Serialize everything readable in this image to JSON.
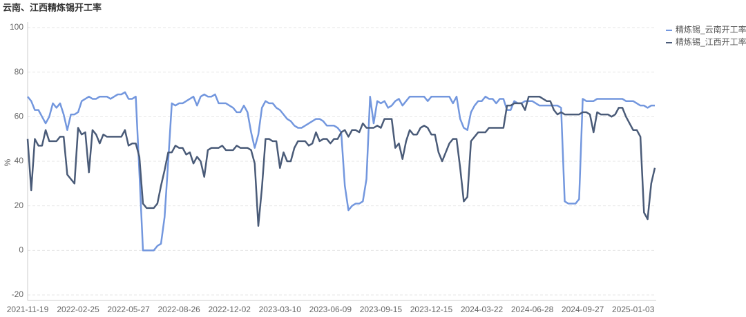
{
  "chart_data": {
    "type": "line",
    "title": "云南、江西精炼锡开工率",
    "y_label": "%",
    "categories": [
      "2021-11-19",
      null,
      null,
      null,
      null,
      null,
      null,
      null,
      null,
      null,
      null,
      null,
      null,
      null,
      "2022-02-25",
      null,
      null,
      null,
      null,
      null,
      null,
      null,
      null,
      null,
      null,
      null,
      null,
      null,
      "2022-05-27",
      null,
      null,
      null,
      null,
      null,
      null,
      null,
      null,
      null,
      null,
      null,
      null,
      null,
      "2022-08-26",
      null,
      null,
      null,
      null,
      null,
      null,
      null,
      null,
      null,
      null,
      null,
      null,
      null,
      "2022-12-02",
      null,
      null,
      null,
      null,
      null,
      null,
      null,
      null,
      null,
      null,
      null,
      null,
      null,
      "2023-03-10",
      null,
      null,
      null,
      null,
      null,
      null,
      null,
      null,
      null,
      null,
      null,
      null,
      null,
      "2023-06-09",
      null,
      null,
      null,
      null,
      null,
      null,
      null,
      null,
      null,
      null,
      null,
      null,
      null,
      "2023-09-15",
      null,
      null,
      null,
      null,
      null,
      null,
      null,
      null,
      null,
      null,
      null,
      null,
      null,
      "2023-12-15",
      null,
      null,
      null,
      null,
      null,
      null,
      null,
      null,
      null,
      null,
      null,
      null,
      null,
      "2024-03-22",
      null,
      null,
      null,
      null,
      null,
      null,
      null,
      null,
      null,
      null,
      null,
      null,
      null,
      "2024-06-28",
      null,
      null,
      null,
      null,
      null,
      null,
      null,
      null,
      null,
      null,
      null,
      null,
      null,
      "2024-09-27",
      null,
      null,
      null,
      null,
      null,
      null,
      null,
      null,
      null,
      null,
      null,
      null,
      null,
      "2025-01-03",
      null,
      null,
      null,
      null,
      null,
      null
    ],
    "series": [
      {
        "name": "精炼锡_云南开工率",
        "color": "#7397de",
        "values": [
          69,
          67,
          63,
          63,
          60,
          57,
          60,
          66,
          64,
          66,
          61,
          54,
          61,
          61,
          62,
          67,
          68,
          69,
          68,
          68,
          69,
          69,
          69,
          68,
          69,
          70,
          70,
          71,
          68,
          68,
          69,
          35,
          0,
          0,
          0,
          0,
          2,
          3,
          15,
          40,
          66,
          65,
          66,
          66,
          67,
          68,
          69,
          65,
          69,
          70,
          69,
          69,
          70,
          66,
          66,
          66,
          65,
          64,
          62,
          62,
          65,
          62,
          53,
          46,
          52,
          64,
          67,
          66,
          66,
          64,
          63,
          61,
          59,
          58,
          56,
          55,
          55,
          56,
          57,
          58,
          59,
          59,
          58,
          56,
          56,
          56,
          55,
          53,
          29,
          18,
          20,
          21,
          21,
          22,
          32,
          69,
          57,
          67,
          66,
          67,
          64,
          65,
          67,
          68,
          65,
          67,
          69,
          69,
          69,
          69,
          69,
          67,
          69,
          69,
          69,
          69,
          69,
          69,
          66,
          69,
          59,
          55,
          54,
          62,
          65,
          67,
          67,
          69,
          68,
          68,
          66,
          68,
          68,
          63,
          63,
          67,
          66,
          66,
          67,
          67,
          67,
          66,
          65,
          65,
          65,
          65,
          65,
          65,
          64,
          22,
          21,
          21,
          21,
          23,
          68,
          67,
          67,
          67,
          68,
          68,
          68,
          68,
          68,
          68,
          68,
          68,
          67,
          67,
          67,
          66,
          65,
          65,
          64,
          65,
          65
        ]
      },
      {
        "name": "精炼锡_江西开工率",
        "color": "#4a5b78",
        "values": [
          50,
          27,
          50,
          47,
          47,
          54,
          49,
          49,
          49,
          51,
          51,
          34,
          32,
          30,
          55,
          52,
          53,
          35,
          54,
          52,
          48,
          52,
          51,
          51,
          51,
          51,
          51,
          54,
          47,
          48,
          48,
          42,
          21,
          19,
          19,
          19,
          21,
          29,
          36,
          44,
          44,
          47,
          46,
          46,
          43,
          44,
          39,
          42,
          40,
          33,
          45,
          46,
          46,
          46,
          47,
          45,
          45,
          45,
          47,
          46,
          46,
          46,
          45,
          39,
          11,
          28,
          50,
          50,
          49,
          49,
          37,
          44,
          40,
          40,
          46,
          49,
          49,
          49,
          47,
          48,
          53,
          49,
          50,
          50,
          48,
          50,
          50,
          53,
          54,
          51,
          54,
          54,
          53,
          57,
          55,
          55,
          55,
          56,
          55,
          59,
          59,
          59,
          46,
          48,
          41,
          49,
          54,
          52,
          52,
          55,
          56,
          55,
          52,
          52,
          44,
          40,
          44,
          48,
          50,
          50,
          37,
          22,
          24,
          49,
          51,
          53,
          53,
          53,
          55,
          55,
          55,
          55,
          55,
          65,
          65,
          66,
          66,
          66,
          63,
          69,
          69,
          69,
          69,
          68,
          67,
          67,
          63,
          61,
          62,
          61,
          61,
          61,
          61,
          61,
          62,
          62,
          61,
          53,
          62,
          61,
          61,
          61,
          60,
          61,
          64,
          64,
          60,
          57,
          54,
          54,
          51,
          17,
          14,
          30,
          37
        ]
      }
    ],
    "ylim": [
      -20,
      100
    ],
    "yticks": [
      -20,
      0,
      20,
      40,
      60,
      80,
      100
    ],
    "grid": true,
    "legend": "top-right"
  }
}
